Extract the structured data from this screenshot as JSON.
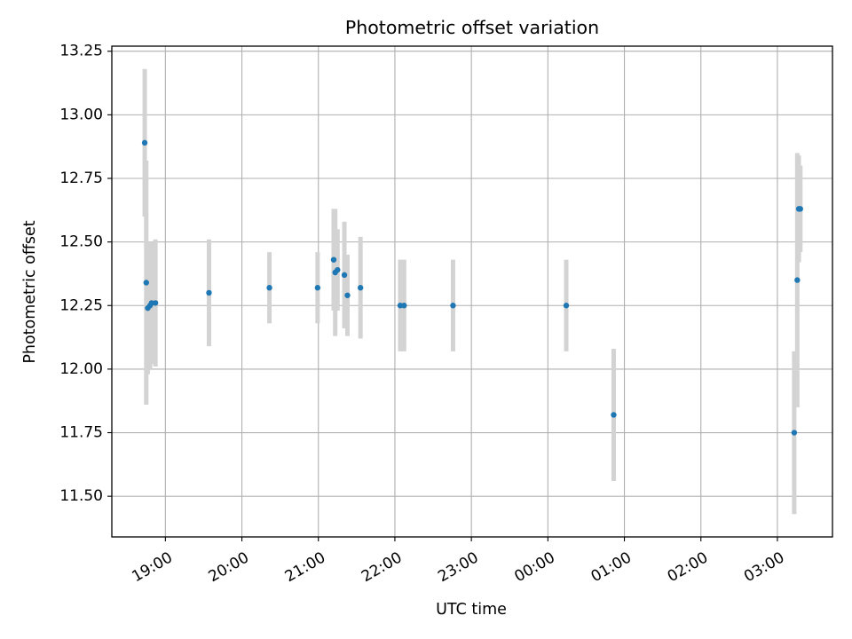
{
  "chart_data": {
    "type": "scatter",
    "title": "Photometric offset variation",
    "xlabel": "UTC time",
    "ylabel": "Photometric offset",
    "x_unit": "UTC time (hours, relative to 18:00)",
    "xlim": [
      18.3,
      27.72
    ],
    "ylim": [
      11.34,
      13.27
    ],
    "grid": true,
    "marker_color": "#1f77b4",
    "errorbar_color": "#d3d3d3",
    "x_ticks": [
      {
        "value": 19,
        "label": "19:00"
      },
      {
        "value": 20,
        "label": "20:00"
      },
      {
        "value": 21,
        "label": "21:00"
      },
      {
        "value": 22,
        "label": "22:00"
      },
      {
        "value": 23,
        "label": "23:00"
      },
      {
        "value": 24,
        "label": "00:00"
      },
      {
        "value": 25,
        "label": "01:00"
      },
      {
        "value": 26,
        "label": "02:00"
      },
      {
        "value": 27,
        "label": "03:00"
      }
    ],
    "y_ticks": [
      {
        "value": 11.5,
        "label": "11.50"
      },
      {
        "value": 11.75,
        "label": "11.75"
      },
      {
        "value": 12.0,
        "label": "12.00"
      },
      {
        "value": 12.25,
        "label": "12.25"
      },
      {
        "value": 12.5,
        "label": "12.50"
      },
      {
        "value": 12.75,
        "label": "12.75"
      },
      {
        "value": 13.0,
        "label": "13.00"
      },
      {
        "value": 13.25,
        "label": "13.25"
      }
    ],
    "points": [
      {
        "x": 18.73,
        "y": 12.89,
        "err": 0.29
      },
      {
        "x": 18.74,
        "y": 12.71,
        "err": 0.1,
        "marker": false
      },
      {
        "x": 18.75,
        "y": 12.34,
        "err": 0.48
      },
      {
        "x": 18.77,
        "y": 12.24,
        "err": 0.26
      },
      {
        "x": 18.8,
        "y": 12.25,
        "err": 0.25
      },
      {
        "x": 18.82,
        "y": 12.26,
        "err": 0.24
      },
      {
        "x": 18.87,
        "y": 12.26,
        "err": 0.25
      },
      {
        "x": 19.57,
        "y": 12.3,
        "err": 0.21
      },
      {
        "x": 20.36,
        "y": 12.32,
        "err": 0.14
      },
      {
        "x": 20.99,
        "y": 12.32,
        "err": 0.14
      },
      {
        "x": 21.2,
        "y": 12.43,
        "err": 0.2
      },
      {
        "x": 21.22,
        "y": 12.38,
        "err": 0.25
      },
      {
        "x": 21.25,
        "y": 12.39,
        "err": 0.16
      },
      {
        "x": 21.34,
        "y": 12.37,
        "err": 0.21
      },
      {
        "x": 21.38,
        "y": 12.29,
        "err": 0.16
      },
      {
        "x": 21.55,
        "y": 12.32,
        "err": 0.2
      },
      {
        "x": 22.07,
        "y": 12.25,
        "err": 0.18
      },
      {
        "x": 22.12,
        "y": 12.25,
        "err": 0.18
      },
      {
        "x": 22.76,
        "y": 12.25,
        "err": 0.18
      },
      {
        "x": 24.24,
        "y": 12.25,
        "err": 0.18
      },
      {
        "x": 24.86,
        "y": 11.82,
        "err": 0.26
      },
      {
        "x": 27.22,
        "y": 11.75,
        "err": 0.32
      },
      {
        "x": 27.26,
        "y": 12.35,
        "err": 0.5
      },
      {
        "x": 27.28,
        "y": 12.63,
        "err": 0.21
      },
      {
        "x": 27.3,
        "y": 12.63,
        "err": 0.17
      }
    ]
  }
}
